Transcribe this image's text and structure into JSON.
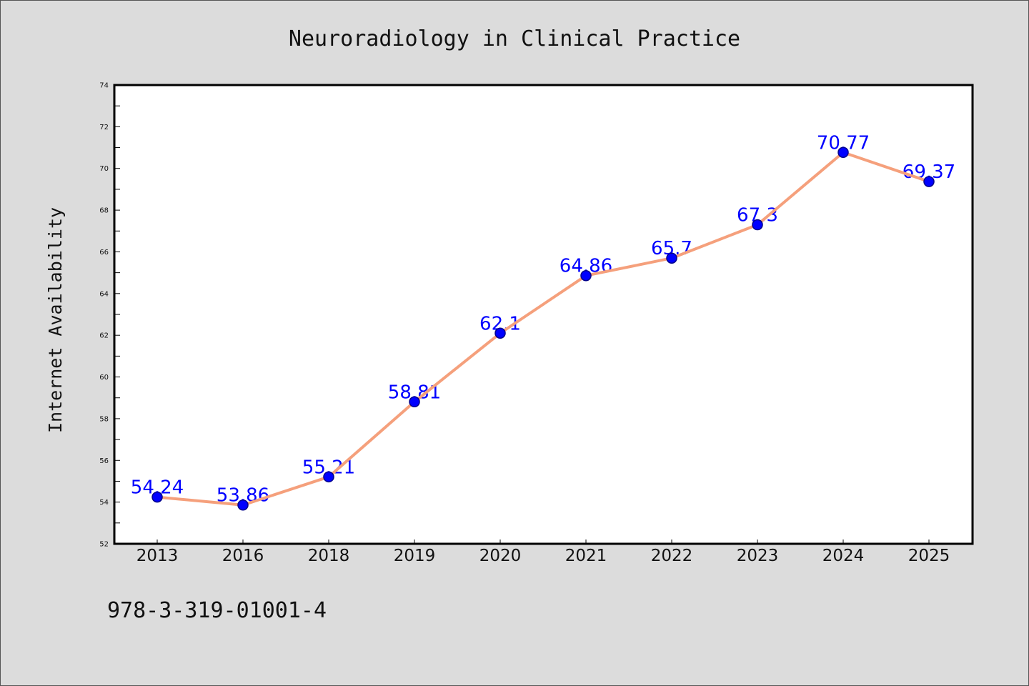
{
  "chart_data": {
    "type": "line",
    "title": "Neuroradiology in Clinical Practice",
    "xlabel": "",
    "ylabel": "Internet Availability",
    "categories": [
      "2013",
      "2016",
      "2018",
      "2019",
      "2020",
      "2021",
      "2022",
      "2023",
      "2024",
      "2025"
    ],
    "values": [
      54.24,
      53.86,
      55.21,
      58.81,
      62.1,
      64.86,
      65.7,
      67.3,
      70.77,
      69.37
    ],
    "ylim": [
      52,
      74
    ],
    "yticks": [
      52,
      54,
      56,
      58,
      60,
      62,
      64,
      66,
      68,
      70,
      72,
      74
    ],
    "grid": false,
    "data_labels_shown": true,
    "colors": {
      "line": "#f5a07c",
      "marker": "#0000ff",
      "marker_edge": "#00008b",
      "data_label": "#0000ff",
      "background": "#dcdcdc",
      "plot_background": "#ffffff"
    }
  },
  "footer": {
    "code": "978-3-319-01001-4"
  }
}
